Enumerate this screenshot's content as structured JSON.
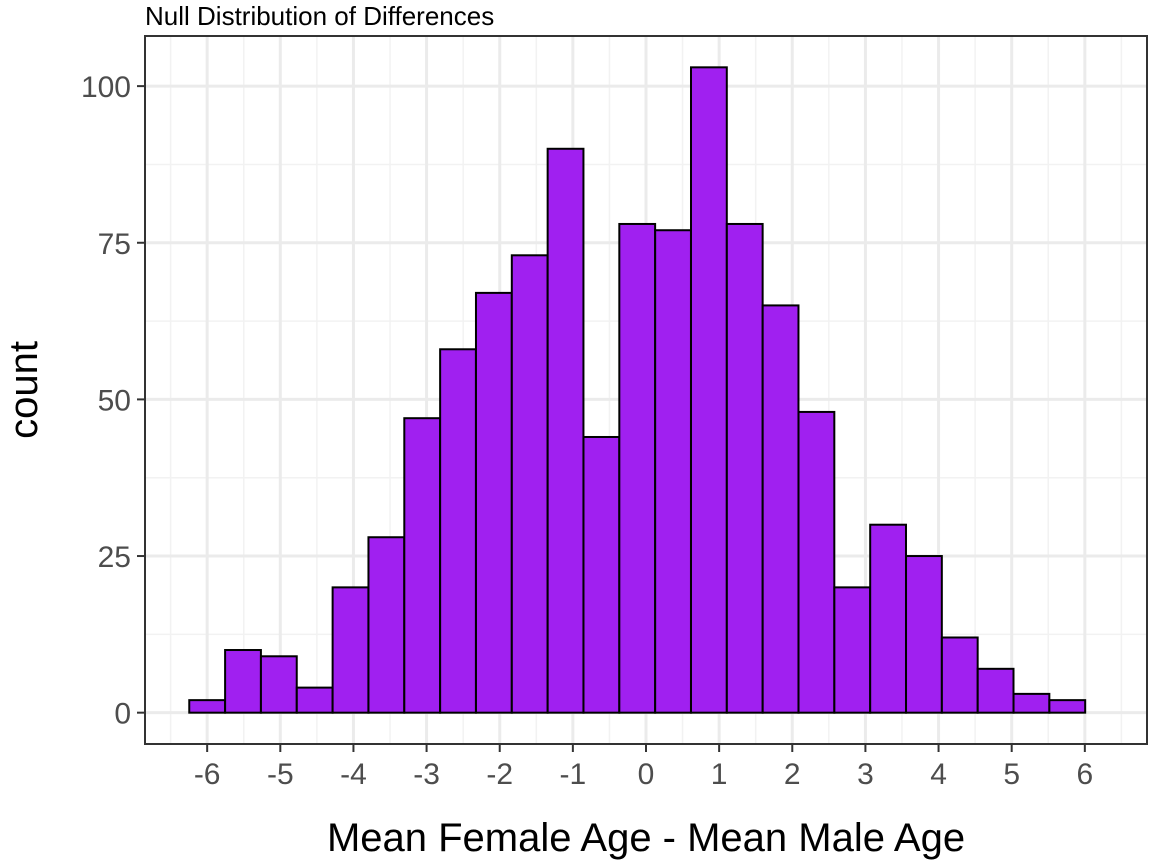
{
  "chart_data": {
    "type": "bar",
    "title": "Null Distribution of Differences",
    "xlabel": "Mean Female Age - Mean Male Age",
    "ylabel": "count",
    "bin_width": 0.4895,
    "bins": [
      {
        "center": -6.0,
        "count": 2
      },
      {
        "center": -5.51,
        "count": 10
      },
      {
        "center": -5.02,
        "count": 9
      },
      {
        "center": -4.53,
        "count": 4
      },
      {
        "center": -4.04,
        "count": 20
      },
      {
        "center": -3.55,
        "count": 28
      },
      {
        "center": -3.06,
        "count": 47
      },
      {
        "center": -2.57,
        "count": 58
      },
      {
        "center": -2.08,
        "count": 67
      },
      {
        "center": -1.59,
        "count": 73
      },
      {
        "center": -1.1,
        "count": 90
      },
      {
        "center": -0.61,
        "count": 44
      },
      {
        "center": -0.12,
        "count": 78
      },
      {
        "center": 0.37,
        "count": 77
      },
      {
        "center": 0.86,
        "count": 103
      },
      {
        "center": 1.35,
        "count": 78
      },
      {
        "center": 1.84,
        "count": 65
      },
      {
        "center": 2.33,
        "count": 48
      },
      {
        "center": 2.82,
        "count": 20
      },
      {
        "center": 3.31,
        "count": 30
      },
      {
        "center": 3.8,
        "count": 25
      },
      {
        "center": 4.29,
        "count": 12
      },
      {
        "center": 4.78,
        "count": 7
      },
      {
        "center": 5.27,
        "count": 3
      },
      {
        "center": 5.76,
        "count": 2
      }
    ],
    "xlim": [
      -6.85,
      6.85
    ],
    "ylim": [
      -5,
      108
    ],
    "x_ticks": [
      "-6",
      "-5",
      "-4",
      "-3",
      "-2",
      "-1",
      "0",
      "1",
      "2",
      "3",
      "4",
      "5",
      "6"
    ],
    "y_ticks": [
      "0",
      "25",
      "50",
      "75",
      "100"
    ],
    "grid": true,
    "colors": {
      "bar_fill": "#a020f0",
      "bar_stroke": "#000000",
      "panel_border": "#333333",
      "grid_major": "#ebebeb",
      "grid_minor": "#f2f2f2",
      "tick_text": "#4d4d4d"
    }
  }
}
